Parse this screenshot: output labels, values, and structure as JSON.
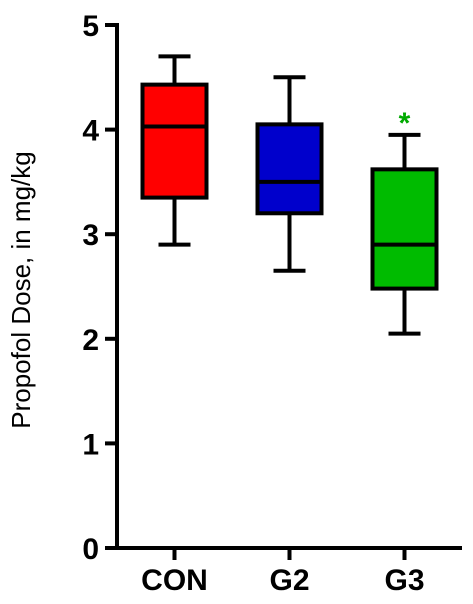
{
  "chart_data": {
    "type": "box",
    "ylabel": "Propofol Dose, in mg/kg",
    "ylim": [
      0,
      5
    ],
    "yticks": [
      "0",
      "1",
      "2",
      "3",
      "4",
      "5"
    ],
    "categories": [
      "CON",
      "G2",
      "G3"
    ],
    "boxes": [
      {
        "category": "CON",
        "min": 2.9,
        "q1": 3.35,
        "median": 4.03,
        "q3": 4.43,
        "max": 4.7,
        "color": "#ff0000"
      },
      {
        "category": "G2",
        "min": 2.65,
        "q1": 3.2,
        "median": 3.5,
        "q3": 4.05,
        "max": 4.5,
        "color": "#0000cc"
      },
      {
        "category": "G3",
        "min": 2.05,
        "q1": 2.48,
        "median": 2.9,
        "q3": 3.62,
        "max": 3.95,
        "color": "#00bb00"
      }
    ],
    "annotations": [
      {
        "category": "G3",
        "text": "*",
        "color": "#00aa00"
      }
    ],
    "grid": false,
    "legend": "none"
  }
}
